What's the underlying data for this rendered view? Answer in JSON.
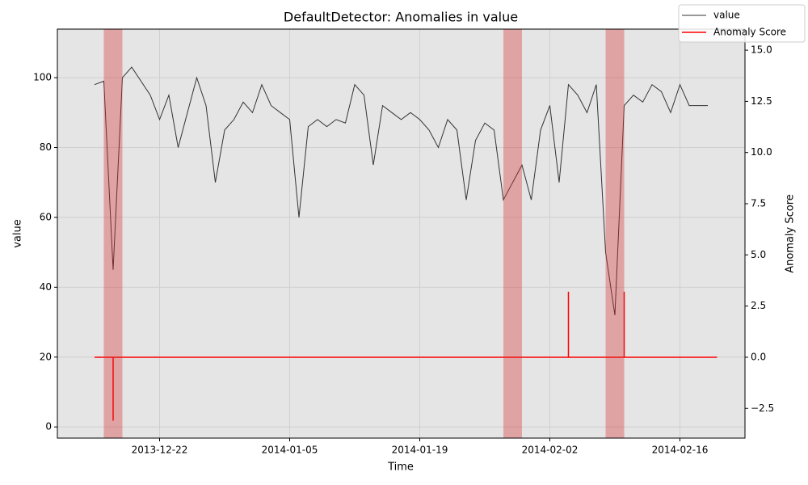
{
  "chart_data": {
    "type": "line",
    "title": "DefaultDetector: Anomalies in value",
    "xlabel": "Time",
    "ylabel": "value",
    "y2label": "Anomaly Score",
    "xlim": [
      "2013-12-11",
      "2014-02-23"
    ],
    "xticks": [
      "2013-12-22",
      "2014-01-05",
      "2014-01-19",
      "2014-02-02",
      "2014-02-16"
    ],
    "ylim": [
      -3.2,
      113.9
    ],
    "yticks": [
      0,
      20,
      40,
      60,
      80,
      100
    ],
    "y2lim": [
      -3.95,
      16.03
    ],
    "y2ticks": [
      {
        "value": -2.5,
        "label": "−2.5"
      },
      {
        "value": 0,
        "label": "0.0"
      },
      2.5,
      {
        "value": 5,
        "label": "5.0"
      },
      7.5,
      {
        "value": 10,
        "label": "10.0"
      },
      12.5,
      {
        "value": 15,
        "label": "15.0"
      }
    ],
    "grid": true,
    "legend": "upper right",
    "anomaly_color": "#d62728",
    "anomaly_windows": [
      [
        "2013-12-16",
        "2013-12-18"
      ],
      [
        "2014-01-28",
        "2014-01-30"
      ],
      [
        "2014-02-08",
        "2014-02-10"
      ]
    ],
    "series": [
      {
        "name": "value",
        "color": "#333333",
        "x": [
          "2013-12-15",
          "2013-12-16",
          "2013-12-17",
          "2013-12-18",
          "2013-12-19",
          "2013-12-20",
          "2013-12-21",
          "2013-12-22",
          "2013-12-23",
          "2013-12-24",
          "2013-12-25",
          "2013-12-26",
          "2013-12-27",
          "2013-12-28",
          "2013-12-29",
          "2013-12-30",
          "2013-12-31",
          "2014-01-01",
          "2014-01-02",
          "2014-01-03",
          "2014-01-04",
          "2014-01-05",
          "2014-01-06",
          "2014-01-07",
          "2014-01-08",
          "2014-01-09",
          "2014-01-10",
          "2014-01-11",
          "2014-01-12",
          "2014-01-13",
          "2014-01-14",
          "2014-01-15",
          "2014-01-16",
          "2014-01-17",
          "2014-01-18",
          "2014-01-19",
          "2014-01-20",
          "2014-01-21",
          "2014-01-22",
          "2014-01-23",
          "2014-01-24",
          "2014-01-25",
          "2014-01-26",
          "2014-01-27",
          "2014-01-28",
          "2014-01-29",
          "2014-01-30",
          "2014-01-31",
          "2014-02-01",
          "2014-02-02",
          "2014-02-03",
          "2014-02-04",
          "2014-02-05",
          "2014-02-06",
          "2014-02-07",
          "2014-02-08",
          "2014-02-09",
          "2014-02-10",
          "2014-02-11",
          "2014-02-12",
          "2014-02-13",
          "2014-02-14",
          "2014-02-15",
          "2014-02-16",
          "2014-02-17",
          "2014-02-18",
          "2014-02-19"
        ],
        "values": [
          98,
          99,
          45,
          100,
          103,
          99,
          95,
          88,
          95,
          80,
          90,
          100,
          92,
          70,
          85,
          88,
          93,
          90,
          98,
          92,
          90,
          88,
          60,
          86,
          88,
          86,
          88,
          87,
          98,
          95,
          75,
          92,
          90,
          88,
          90,
          88,
          85,
          80,
          88,
          85,
          65,
          82,
          87,
          85,
          65,
          70,
          75,
          65,
          85,
          92,
          70,
          98,
          95,
          90,
          98,
          50,
          32,
          92,
          95,
          93,
          98,
          96,
          90,
          98,
          92,
          92,
          92
        ]
      },
      {
        "name": "Anomaly Score",
        "color": "#ff0000",
        "axis": "y2",
        "x": [
          "2013-12-15",
          "2013-12-17",
          "2013-12-17",
          "2013-12-17",
          "2014-02-04",
          "2014-02-04",
          "2014-02-04",
          "2014-02-10",
          "2014-02-10",
          "2014-02-10",
          "2014-02-20"
        ],
        "values": [
          0,
          0,
          -3.1,
          0,
          0,
          3.2,
          0,
          0,
          3.2,
          0,
          0
        ]
      }
    ]
  }
}
